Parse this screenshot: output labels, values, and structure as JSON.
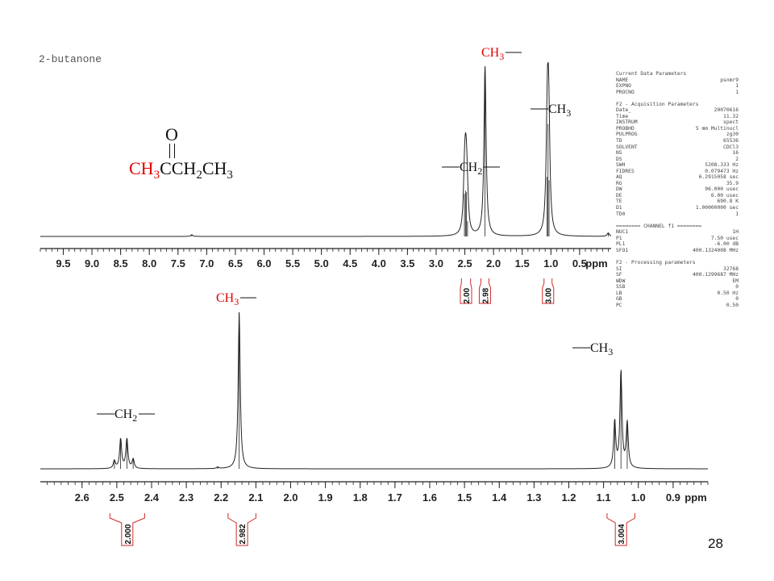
{
  "compound_name": "2-butanone",
  "structure": {
    "oxygen": "O",
    "ch3_red": "CH",
    "ch3_red_sub": "3",
    "rest_1": "CCH",
    "rest_1_sub": "2",
    "rest_2": "CH",
    "rest_2_sub": "3"
  },
  "page_number": "28",
  "colors": {
    "trace": "#222222",
    "axis": "#222222",
    "integral": "#d42a2a",
    "label_red": "#e00000",
    "label_black": "#111111"
  },
  "parameters": [
    [
      "Current Data Parameters",
      ""
    ],
    [
      "NAME",
      "psnmr9"
    ],
    [
      "EXPNO",
      "1"
    ],
    [
      "PROCNO",
      "1"
    ],
    [
      "",
      ""
    ],
    [
      "F2 - Acquisition Parameters",
      ""
    ],
    [
      "Date_",
      "20070616"
    ],
    [
      "Time",
      "11.32"
    ],
    [
      "INSTRUM",
      "spect"
    ],
    [
      "PROBHD",
      "5 mm Multinucl"
    ],
    [
      "PULPROG",
      "zg30"
    ],
    [
      "TD",
      "65536"
    ],
    [
      "SOLVENT",
      "CDCl3"
    ],
    [
      "NS",
      "16"
    ],
    [
      "DS",
      "2"
    ],
    [
      "SWH",
      "5208.333 Hz"
    ],
    [
      "FIDRES",
      "0.079473 Hz"
    ],
    [
      "AQ",
      "6.2915058 sec"
    ],
    [
      "RG",
      "35.9"
    ],
    [
      "DW",
      "96.000 usec"
    ],
    [
      "DE",
      "6.00 usec"
    ],
    [
      "TE",
      "690.8 K"
    ],
    [
      "D1",
      "1.00000000 sec"
    ],
    [
      "TD0",
      "1"
    ],
    [
      "",
      ""
    ],
    [
      "======== CHANNEL f1 ========",
      ""
    ],
    [
      "NUC1",
      "1H"
    ],
    [
      "P1",
      "7.50 usec"
    ],
    [
      "PL1",
      "-6.00 dB"
    ],
    [
      "SFO1",
      "400.1324008 MHz"
    ],
    [
      "",
      ""
    ],
    [
      "F2 - Processing parameters",
      ""
    ],
    [
      "SI",
      "32768"
    ],
    [
      "SF",
      "400.1299687 MHz"
    ],
    [
      "WDW",
      "EM"
    ],
    [
      "SSB",
      "0"
    ],
    [
      "LB",
      "0.50 Hz"
    ],
    [
      "GB",
      "0"
    ],
    [
      "PC",
      "0.50"
    ]
  ],
  "chart_data": [
    {
      "type": "line",
      "panel": "full",
      "xlabel": "ppm",
      "xlim": [
        9.9,
        -0.05
      ],
      "reversed_x": true,
      "tick_labels": [
        "9.5",
        "9.0",
        "8.5",
        "8.0",
        "7.5",
        "7.0",
        "6.5",
        "6.0",
        "5.5",
        "5.0",
        "4.5",
        "4.0",
        "3.5",
        "3.0",
        "2.5",
        "2.0",
        "1.5",
        "1.0",
        "0.5"
      ],
      "tick_values": [
        9.5,
        9.0,
        8.5,
        8.0,
        7.5,
        7.0,
        6.5,
        6.0,
        5.5,
        5.0,
        4.5,
        4.0,
        3.5,
        3.0,
        2.5,
        2.0,
        1.5,
        1.0,
        0.5
      ],
      "peaks": [
        {
          "ppm": 2.507,
          "height": 0.25
        },
        {
          "ppm": 2.489,
          "height": 0.27
        },
        {
          "ppm": 2.471,
          "height": 0.26
        },
        {
          "ppm": 2.453,
          "height": 0.09
        },
        {
          "ppm": 2.148,
          "height": 1.0
        },
        {
          "ppm": 1.068,
          "height": 0.35
        },
        {
          "ppm": 1.05,
          "height": 0.66
        },
        {
          "ppm": 1.032,
          "height": 0.33
        },
        {
          "ppm": 7.26,
          "height": 0.01
        },
        {
          "ppm": 0.0,
          "height": 0.02
        }
      ],
      "integrals": [
        {
          "ppm_from": 2.56,
          "ppm_to": 2.4,
          "label": "2.00"
        },
        {
          "ppm_from": 2.22,
          "ppm_to": 2.08,
          "label": "2.98"
        },
        {
          "ppm_from": 1.12,
          "ppm_to": 0.98,
          "label": "3.00"
        }
      ],
      "annotations": [
        {
          "text_main": "CH",
          "sub": "3",
          "color": "red",
          "bond": "right",
          "ppm": 2.148
        },
        {
          "text_main": "CH",
          "sub": "3",
          "color": "black",
          "bond": "left",
          "ppm": 1.05
        },
        {
          "text_main": "CH",
          "sub": "2",
          "color": "black",
          "bond": "both",
          "ppm": 2.48
        }
      ]
    },
    {
      "type": "line",
      "panel": "zoom",
      "xlabel": "ppm",
      "xlim": [
        2.72,
        0.8
      ],
      "reversed_x": true,
      "tick_labels": [
        "2.6",
        "2.5",
        "2.4",
        "2.3",
        "2.2",
        "2.1",
        "2.0",
        "1.9",
        "1.8",
        "1.7",
        "1.6",
        "1.5",
        "1.4",
        "1.3",
        "1.2",
        "1.1",
        "1.0",
        "0.9"
      ],
      "tick_values": [
        2.6,
        2.5,
        2.4,
        2.3,
        2.2,
        2.1,
        2.0,
        1.9,
        1.8,
        1.7,
        1.6,
        1.5,
        1.4,
        1.3,
        1.2,
        1.1,
        1.0,
        0.9
      ],
      "peaks": [
        {
          "ppm": 2.507,
          "height": 0.05
        },
        {
          "ppm": 2.489,
          "height": 0.19
        },
        {
          "ppm": 2.471,
          "height": 0.19
        },
        {
          "ppm": 2.453,
          "height": 0.06
        },
        {
          "ppm": 2.148,
          "height": 1.0
        },
        {
          "ppm": 1.068,
          "height": 0.3
        },
        {
          "ppm": 1.05,
          "height": 0.62
        },
        {
          "ppm": 1.032,
          "height": 0.29
        },
        {
          "ppm": 2.21,
          "height": 0.01
        }
      ],
      "integrals": [
        {
          "ppm_from": 2.52,
          "ppm_to": 2.42,
          "label": "2.000"
        },
        {
          "ppm_from": 2.18,
          "ppm_to": 2.1,
          "label": "2.982"
        },
        {
          "ppm_from": 1.09,
          "ppm_to": 1.01,
          "label": "3.004"
        }
      ],
      "annotations": [
        {
          "text_main": "CH",
          "sub": "3",
          "color": "red",
          "bond": "right",
          "ppm": 2.148
        },
        {
          "text_main": "CH",
          "sub": "3",
          "color": "black",
          "bond": "left",
          "ppm": 1.05
        },
        {
          "text_main": "CH",
          "sub": "2",
          "color": "black",
          "bond": "both",
          "ppm": 2.48
        }
      ]
    }
  ]
}
